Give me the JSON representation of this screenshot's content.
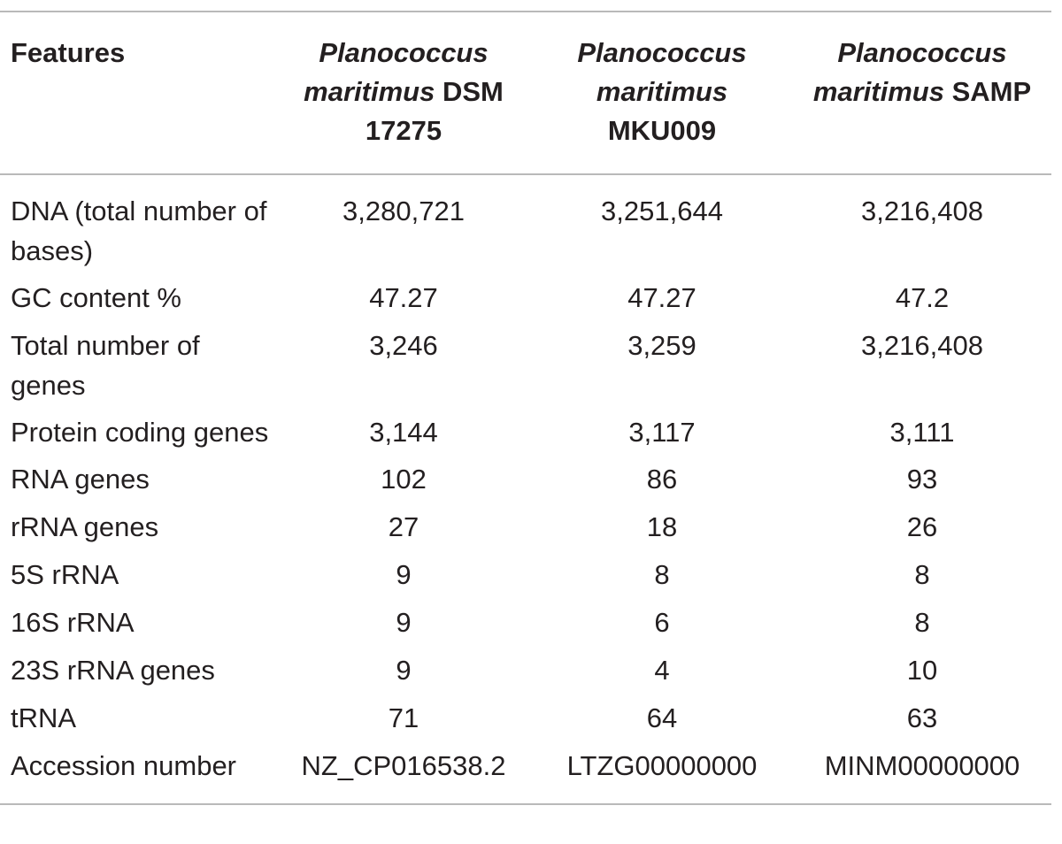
{
  "table": {
    "headers": {
      "features": "Features",
      "strains": [
        {
          "genus": "Planococcus",
          "species": "maritimus",
          "strain": "DSM 17275"
        },
        {
          "genus": "Planococcus",
          "species": "maritimus",
          "strain": "MKU009"
        },
        {
          "genus": "Planococcus",
          "species": "maritimus",
          "strain": "SAMP"
        }
      ]
    },
    "rows": [
      {
        "label": "DNA (total number of bases)",
        "values": [
          "3,280,721",
          "3,251,644",
          "3,216,408"
        ]
      },
      {
        "label": "GC content %",
        "values": [
          "47.27",
          "47.27",
          "47.2"
        ]
      },
      {
        "label": "Total number of genes",
        "values": [
          "3,246",
          "3,259",
          "3,216,408"
        ]
      },
      {
        "label": "Protein coding genes",
        "values": [
          "3,144",
          "3,117",
          "3,111"
        ]
      },
      {
        "label": "RNA genes",
        "values": [
          "102",
          "86",
          "93"
        ]
      },
      {
        "label": "rRNA genes",
        "values": [
          "27",
          "18",
          "26"
        ]
      },
      {
        "label": "5S rRNA",
        "values": [
          "9",
          "8",
          "8"
        ]
      },
      {
        "label": "16S rRNA",
        "values": [
          "9",
          "6",
          "8"
        ]
      },
      {
        "label": "23S rRNA genes",
        "values": [
          "9",
          "4",
          "10"
        ]
      },
      {
        "label": "tRNA",
        "values": [
          "71",
          "64",
          "63"
        ]
      },
      {
        "label": "Accession number",
        "values": [
          "NZ_CP016538.2",
          "LTZG00000000",
          "MINM00000000"
        ]
      }
    ]
  }
}
